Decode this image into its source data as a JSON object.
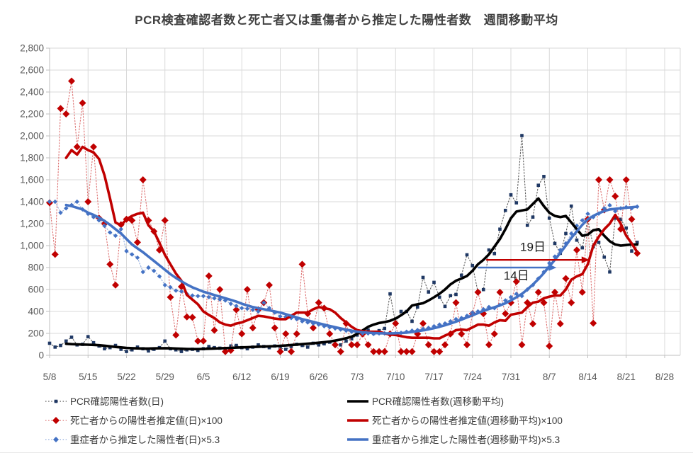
{
  "chart_data": {
    "type": "line",
    "title": "PCR検査確認者数と死亡者又は重傷者から推定した陽性者数　週間移動平均",
    "x_axis": {
      "tick_labels": [
        "5/8",
        "5/15",
        "5/22",
        "5/29",
        "6/5",
        "6/12",
        "6/19",
        "6/26",
        "7/3",
        "7/10",
        "7/17",
        "7/24",
        "7/31",
        "8/7",
        "8/14",
        "8/21",
        "8/28"
      ],
      "days_per_tick": 7,
      "total_days": 112
    },
    "y_axis": {
      "min": 0,
      "max": 2800,
      "step": 200,
      "tick_labels": [
        "0",
        "200",
        "400",
        "600",
        "800",
        "1,000",
        "1,200",
        "1,400",
        "1,600",
        "1,800",
        "2,000",
        "2,200",
        "2,400",
        "2,600",
        "2,800"
      ]
    },
    "grid_color": "#d9d9d9",
    "axis_text_color": "#595959",
    "series": [
      {
        "key": "pcr-daily",
        "name": "PCR確認陽性者数(日)",
        "type": "daily",
        "line_color": "#595959",
        "marker": "square",
        "marker_color": "#1f3864",
        "marker_size": 4.6,
        "start_day": 0,
        "values": [
          110,
          75,
          90,
          130,
          165,
          95,
          100,
          170,
          115,
          85,
          60,
          70,
          90,
          55,
          35,
          50,
          75,
          60,
          40,
          55,
          70,
          130,
          60,
          50,
          35,
          50,
          55,
          45,
          60,
          80,
          70,
          65,
          55,
          85,
          90,
          70,
          60,
          75,
          95,
          80,
          70,
          85,
          65,
          55,
          80,
          100,
          90,
          75,
          110,
          95,
          105,
          120,
          100,
          95,
          130,
          150,
          185,
          215,
          230,
          200,
          225,
          245,
          560,
          290,
          400,
          400,
          310,
          440,
          710,
          577,
          665,
          530,
          446,
          544,
          555,
          730,
          916,
          818,
          577,
          599,
          960,
          927,
          1150,
          1321,
          1463,
          1390,
          2003,
          1185,
          1260,
          1550,
          1630,
          1250,
          1020,
          930,
          1110,
          1360,
          1050,
          980,
          1240,
          990,
          1030,
          895,
          760,
          1250,
          1240,
          1160,
          950,
          1030
        ]
      },
      {
        "key": "pcr-weekly",
        "name": "PCR確認陽性者数(週移動平均)",
        "type": "weekly",
        "line_color": "#000000",
        "marker": "none",
        "marker_color": "#000000",
        "marker_size": 0,
        "start_day": 3,
        "values": [
          105,
          102,
          100,
          98,
          97,
          95,
          92,
          88,
          82,
          76,
          72,
          68,
          65,
          63,
          62,
          62,
          63,
          64,
          65,
          64,
          62,
          60,
          58,
          57,
          57,
          58,
          60,
          62,
          64,
          66,
          68,
          70,
          72,
          74,
          76,
          78,
          80,
          82,
          84,
          87,
          90,
          94,
          98,
          102,
          106,
          110,
          115,
          120,
          126,
          134,
          144,
          156,
          170,
          195,
          228,
          260,
          280,
          295,
          303,
          315,
          335,
          365,
          400,
          454,
          465,
          475,
          500,
          529,
          561,
          600,
          647,
          680,
          700,
          723,
          770,
          830,
          870,
          920,
          991,
          1060,
          1150,
          1250,
          1310,
          1320,
          1330,
          1380,
          1430,
          1360,
          1300,
          1270,
          1260,
          1270,
          1210,
          1150,
          1090,
          1100,
          1140,
          1150,
          1090,
          1040,
          1010,
          1000,
          1005,
          1010,
          1010
        ]
      },
      {
        "key": "death-daily",
        "name": "死亡者からの陽性者推定値(日)×100",
        "type": "daily",
        "line_color": "#dd7070",
        "marker": "diamond",
        "marker_color": "#c00000",
        "marker_size": 5,
        "start_day": 0,
        "values": [
          1390,
          920,
          2250,
          2200,
          2500,
          1900,
          2300,
          1400,
          1900,
          1250,
          1200,
          830,
          640,
          1190,
          1240,
          1230,
          1030,
          1600,
          1230,
          1130,
          960,
          1230,
          530,
          185,
          626,
          350,
          346,
          130,
          131,
          723,
          228,
          600,
          34,
          45,
          415,
          196,
          600,
          250,
          415,
          480,
          640,
          250,
          34,
          196,
          34,
          196,
          830,
          380,
          250,
          480,
          430,
          196,
          96,
          34,
          290,
          96,
          96,
          195,
          96,
          34,
          34,
          34,
          195,
          290,
          34,
          34,
          34,
          195,
          290,
          96,
          34,
          34,
          96,
          195,
          480,
          195,
          96,
          380,
          575,
          380,
          96,
          195,
          575,
          380,
          480,
          672,
          96,
          480,
          287,
          575,
          480,
          85,
          575,
          287,
          700,
          480,
          960,
          575,
          1240,
          293,
          1600,
          1325,
          1600,
          1450,
          1150,
          1600,
          1240,
          930
        ]
      },
      {
        "key": "death-weekly",
        "name": "死亡者からの陽性者推定値(週移動平均)×100",
        "type": "weekly",
        "line_color": "#c00000",
        "marker": "none",
        "marker_color": "#c00000",
        "marker_size": 0,
        "start_day": 3,
        "values": [
          1800,
          1870,
          1830,
          1900,
          1870,
          1850,
          1790,
          1640,
          1430,
          1210,
          1185,
          1240,
          1270,
          1290,
          1300,
          1185,
          1130,
          1025,
          915,
          830,
          745,
          680,
          550,
          508,
          465,
          400,
          368,
          340,
          300,
          280,
          270,
          290,
          300,
          320,
          340,
          360,
          355,
          345,
          335,
          330,
          330,
          360,
          390,
          390,
          390,
          420,
          440,
          430,
          420,
          390,
          340,
          300,
          260,
          230,
          220,
          215,
          215,
          215,
          200,
          190,
          185,
          175,
          165,
          160,
          160,
          160,
          160,
          155,
          155,
          180,
          200,
          230,
          235,
          230,
          255,
          280,
          280,
          270,
          300,
          320,
          315,
          370,
          380,
          390,
          440,
          480,
          490,
          520,
          535,
          545,
          545,
          600,
          690,
          720,
          740,
          830,
          1000,
          1080,
          1150,
          1200,
          1280,
          1200,
          1090,
          1020,
          940
        ]
      },
      {
        "key": "serious-daily",
        "name": "重症者から推定した陽性者(日)×5.3",
        "type": "daily",
        "line_color": "#8faadc",
        "marker": "diamond",
        "marker_color": "#4472c4",
        "marker_size": 3.2,
        "start_day": 0,
        "values": [
          1400,
          1400,
          1300,
          1340,
          1370,
          1400,
          1330,
          1290,
          1260,
          1230,
          1180,
          1120,
          1090,
          1150,
          950,
          920,
          890,
          760,
          800,
          770,
          720,
          640,
          620,
          590,
          583,
          560,
          545,
          540,
          540,
          530,
          520,
          510,
          500,
          470,
          450,
          430,
          425,
          415,
          400,
          480,
          430,
          390,
          355,
          350,
          340,
          330,
          310,
          300,
          290,
          280,
          265,
          255,
          245,
          235,
          225,
          215,
          205,
          200,
          200,
          195,
          200,
          200,
          195,
          200,
          205,
          215,
          225,
          230,
          240,
          250,
          265,
          280,
          290,
          310,
          330,
          340,
          360,
          390,
          400,
          420,
          440,
          430,
          460,
          500,
          530,
          560,
          540,
          600,
          640,
          700,
          760,
          840,
          900,
          960,
          1020,
          1110,
          1180,
          1230,
          1290,
          1260,
          1292,
          1340,
          1368,
          1314,
          1340,
          1350,
          1340,
          1355
        ]
      },
      {
        "key": "serious-weekly",
        "name": "重症者から推定した陽性者(週移動平均)×5.3",
        "type": "weekly",
        "line_color": "#4472c4",
        "marker": "none",
        "marker_color": "#4472c4",
        "marker_size": 0,
        "start_day": 3,
        "values": [
          1370,
          1360,
          1345,
          1330,
          1300,
          1280,
          1255,
          1225,
          1190,
          1150,
          1110,
          1060,
          1010,
          975,
          940,
          900,
          860,
          820,
          780,
          740,
          705,
          675,
          645,
          620,
          600,
          580,
          565,
          550,
          535,
          520,
          505,
          490,
          470,
          455,
          440,
          430,
          420,
          410,
          400,
          390,
          375,
          360,
          345,
          330,
          318,
          305,
          292,
          280,
          268,
          256,
          245,
          235,
          225,
          216,
          210,
          206,
          203,
          201,
          200,
          200,
          201,
          203,
          207,
          213,
          220,
          228,
          237,
          248,
          260,
          274,
          290,
          307,
          325,
          345,
          365,
          385,
          405,
          422,
          438,
          455,
          475,
          500,
          530,
          560,
          600,
          645,
          695,
          750,
          810,
          870,
          935,
          1000,
          1070,
          1130,
          1190,
          1240,
          1271,
          1295,
          1315,
          1330,
          1335,
          1340,
          1346,
          1350,
          1355
        ]
      }
    ],
    "annotations": [
      {
        "label": "19日",
        "color": "#c00000",
        "value": 870,
        "from_day": 79.5,
        "to_day": 98.3,
        "label_day": 88,
        "label_value": 990
      },
      {
        "label": "14日",
        "color": "#4472c4",
        "value": 800,
        "from_day": 78,
        "to_day": 92.3,
        "label_day": 85,
        "label_value": 730
      }
    ]
  }
}
